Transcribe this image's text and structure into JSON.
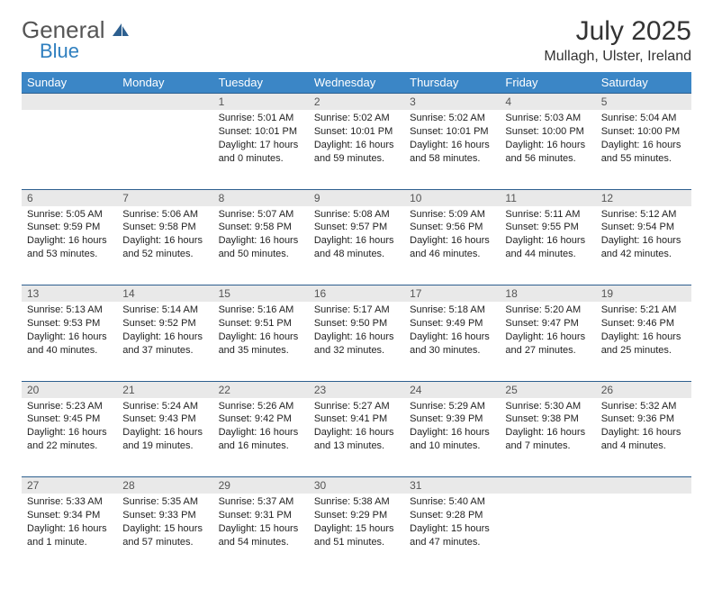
{
  "logo": {
    "text1": "General",
    "text2": "Blue",
    "color1": "#555555",
    "color2": "#2f7fbf",
    "icon_color": "#2d5f8f"
  },
  "header": {
    "month_title": "July 2025",
    "location": "Mullagh, Ulster, Ireland"
  },
  "colors": {
    "header_bg": "#3b86c6",
    "daynum_bg": "#e9e9e9",
    "rule": "#2d5f8f"
  },
  "weekdays": [
    "Sunday",
    "Monday",
    "Tuesday",
    "Wednesday",
    "Thursday",
    "Friday",
    "Saturday"
  ],
  "weeks": [
    [
      {
        "n": "",
        "sunrise": "",
        "sunset": "",
        "daylight": ""
      },
      {
        "n": "",
        "sunrise": "",
        "sunset": "",
        "daylight": ""
      },
      {
        "n": "1",
        "sunrise": "Sunrise: 5:01 AM",
        "sunset": "Sunset: 10:01 PM",
        "daylight": "Daylight: 17 hours and 0 minutes."
      },
      {
        "n": "2",
        "sunrise": "Sunrise: 5:02 AM",
        "sunset": "Sunset: 10:01 PM",
        "daylight": "Daylight: 16 hours and 59 minutes."
      },
      {
        "n": "3",
        "sunrise": "Sunrise: 5:02 AM",
        "sunset": "Sunset: 10:01 PM",
        "daylight": "Daylight: 16 hours and 58 minutes."
      },
      {
        "n": "4",
        "sunrise": "Sunrise: 5:03 AM",
        "sunset": "Sunset: 10:00 PM",
        "daylight": "Daylight: 16 hours and 56 minutes."
      },
      {
        "n": "5",
        "sunrise": "Sunrise: 5:04 AM",
        "sunset": "Sunset: 10:00 PM",
        "daylight": "Daylight: 16 hours and 55 minutes."
      }
    ],
    [
      {
        "n": "6",
        "sunrise": "Sunrise: 5:05 AM",
        "sunset": "Sunset: 9:59 PM",
        "daylight": "Daylight: 16 hours and 53 minutes."
      },
      {
        "n": "7",
        "sunrise": "Sunrise: 5:06 AM",
        "sunset": "Sunset: 9:58 PM",
        "daylight": "Daylight: 16 hours and 52 minutes."
      },
      {
        "n": "8",
        "sunrise": "Sunrise: 5:07 AM",
        "sunset": "Sunset: 9:58 PM",
        "daylight": "Daylight: 16 hours and 50 minutes."
      },
      {
        "n": "9",
        "sunrise": "Sunrise: 5:08 AM",
        "sunset": "Sunset: 9:57 PM",
        "daylight": "Daylight: 16 hours and 48 minutes."
      },
      {
        "n": "10",
        "sunrise": "Sunrise: 5:09 AM",
        "sunset": "Sunset: 9:56 PM",
        "daylight": "Daylight: 16 hours and 46 minutes."
      },
      {
        "n": "11",
        "sunrise": "Sunrise: 5:11 AM",
        "sunset": "Sunset: 9:55 PM",
        "daylight": "Daylight: 16 hours and 44 minutes."
      },
      {
        "n": "12",
        "sunrise": "Sunrise: 5:12 AM",
        "sunset": "Sunset: 9:54 PM",
        "daylight": "Daylight: 16 hours and 42 minutes."
      }
    ],
    [
      {
        "n": "13",
        "sunrise": "Sunrise: 5:13 AM",
        "sunset": "Sunset: 9:53 PM",
        "daylight": "Daylight: 16 hours and 40 minutes."
      },
      {
        "n": "14",
        "sunrise": "Sunrise: 5:14 AM",
        "sunset": "Sunset: 9:52 PM",
        "daylight": "Daylight: 16 hours and 37 minutes."
      },
      {
        "n": "15",
        "sunrise": "Sunrise: 5:16 AM",
        "sunset": "Sunset: 9:51 PM",
        "daylight": "Daylight: 16 hours and 35 minutes."
      },
      {
        "n": "16",
        "sunrise": "Sunrise: 5:17 AM",
        "sunset": "Sunset: 9:50 PM",
        "daylight": "Daylight: 16 hours and 32 minutes."
      },
      {
        "n": "17",
        "sunrise": "Sunrise: 5:18 AM",
        "sunset": "Sunset: 9:49 PM",
        "daylight": "Daylight: 16 hours and 30 minutes."
      },
      {
        "n": "18",
        "sunrise": "Sunrise: 5:20 AM",
        "sunset": "Sunset: 9:47 PM",
        "daylight": "Daylight: 16 hours and 27 minutes."
      },
      {
        "n": "19",
        "sunrise": "Sunrise: 5:21 AM",
        "sunset": "Sunset: 9:46 PM",
        "daylight": "Daylight: 16 hours and 25 minutes."
      }
    ],
    [
      {
        "n": "20",
        "sunrise": "Sunrise: 5:23 AM",
        "sunset": "Sunset: 9:45 PM",
        "daylight": "Daylight: 16 hours and 22 minutes."
      },
      {
        "n": "21",
        "sunrise": "Sunrise: 5:24 AM",
        "sunset": "Sunset: 9:43 PM",
        "daylight": "Daylight: 16 hours and 19 minutes."
      },
      {
        "n": "22",
        "sunrise": "Sunrise: 5:26 AM",
        "sunset": "Sunset: 9:42 PM",
        "daylight": "Daylight: 16 hours and 16 minutes."
      },
      {
        "n": "23",
        "sunrise": "Sunrise: 5:27 AM",
        "sunset": "Sunset: 9:41 PM",
        "daylight": "Daylight: 16 hours and 13 minutes."
      },
      {
        "n": "24",
        "sunrise": "Sunrise: 5:29 AM",
        "sunset": "Sunset: 9:39 PM",
        "daylight": "Daylight: 16 hours and 10 minutes."
      },
      {
        "n": "25",
        "sunrise": "Sunrise: 5:30 AM",
        "sunset": "Sunset: 9:38 PM",
        "daylight": "Daylight: 16 hours and 7 minutes."
      },
      {
        "n": "26",
        "sunrise": "Sunrise: 5:32 AM",
        "sunset": "Sunset: 9:36 PM",
        "daylight": "Daylight: 16 hours and 4 minutes."
      }
    ],
    [
      {
        "n": "27",
        "sunrise": "Sunrise: 5:33 AM",
        "sunset": "Sunset: 9:34 PM",
        "daylight": "Daylight: 16 hours and 1 minute."
      },
      {
        "n": "28",
        "sunrise": "Sunrise: 5:35 AM",
        "sunset": "Sunset: 9:33 PM",
        "daylight": "Daylight: 15 hours and 57 minutes."
      },
      {
        "n": "29",
        "sunrise": "Sunrise: 5:37 AM",
        "sunset": "Sunset: 9:31 PM",
        "daylight": "Daylight: 15 hours and 54 minutes."
      },
      {
        "n": "30",
        "sunrise": "Sunrise: 5:38 AM",
        "sunset": "Sunset: 9:29 PM",
        "daylight": "Daylight: 15 hours and 51 minutes."
      },
      {
        "n": "31",
        "sunrise": "Sunrise: 5:40 AM",
        "sunset": "Sunset: 9:28 PM",
        "daylight": "Daylight: 15 hours and 47 minutes."
      },
      {
        "n": "",
        "sunrise": "",
        "sunset": "",
        "daylight": ""
      },
      {
        "n": "",
        "sunrise": "",
        "sunset": "",
        "daylight": ""
      }
    ]
  ]
}
